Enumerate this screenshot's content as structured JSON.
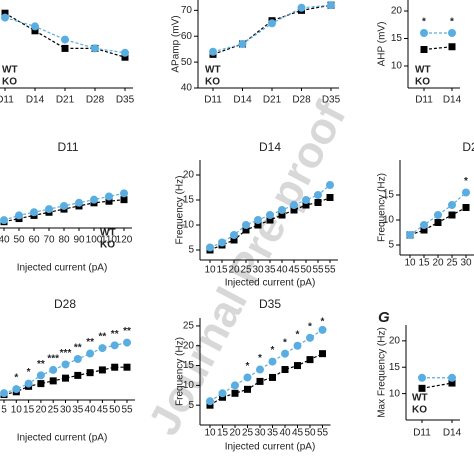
{
  "watermark": "Journal Pre-proof",
  "chart_data": [
    {
      "type": "line",
      "categories": [
        "D11",
        "D14",
        "D21",
        "D28",
        "D35"
      ],
      "ylim": [
        0,
        10
      ],
      "legend": "lower left",
      "series": [
        {
          "name": "WT",
          "color": "#000000",
          "marker": "square",
          "values": [
            8.5,
            6.5,
            4.5,
            4.5,
            3.5
          ]
        },
        {
          "name": "KO",
          "color": "#5aade0",
          "marker": "circle",
          "values": [
            8,
            7,
            5.5,
            4.5,
            4
          ]
        }
      ]
    },
    {
      "type": "line",
      "ylabel": "APamp (mV)",
      "categories": [
        "D11",
        "D14",
        "D21",
        "D28",
        "D35"
      ],
      "ylim": [
        40,
        74
      ],
      "yticks": [
        40,
        50,
        60,
        70
      ],
      "legend": "lower left",
      "series": [
        {
          "name": "WT",
          "color": "#000000",
          "marker": "square",
          "values": [
            53,
            57,
            66,
            70,
            72
          ]
        },
        {
          "name": "KO",
          "color": "#5aade0",
          "marker": "circle",
          "values": [
            54,
            57,
            65,
            71,
            72
          ]
        }
      ]
    },
    {
      "type": "line",
      "ylabel": "AHP (mV)",
      "categories": [
        "D11",
        "D14"
      ],
      "ylim": [
        6,
        22
      ],
      "yticks": [
        10,
        15,
        20
      ],
      "legend": "lower left",
      "markers": [
        "*",
        "*"
      ],
      "series": [
        {
          "name": "WT",
          "color": "#000000",
          "marker": "square",
          "values": [
            13,
            13.5
          ]
        },
        {
          "name": "KO",
          "color": "#5aade0",
          "marker": "circle",
          "values": [
            16,
            16
          ]
        }
      ]
    },
    {
      "type": "line",
      "title": "D11",
      "xlabel": "Injected current (pA)",
      "categories": [
        "40",
        "50",
        "60",
        "70",
        "80",
        "90",
        "100",
        "110",
        "120"
      ],
      "ylim": [
        0,
        20
      ],
      "legend": "lower right",
      "series": [
        {
          "name": "WT",
          "color": "#000000",
          "marker": "square",
          "values": [
            2,
            3,
            4,
            5,
            6,
            7,
            8,
            8.5,
            9
          ]
        },
        {
          "name": "KO",
          "color": "#5aade0",
          "marker": "circle",
          "values": [
            2.5,
            4,
            5,
            6,
            7,
            8,
            9,
            10,
            11
          ]
        }
      ]
    },
    {
      "type": "line",
      "title": "D14",
      "ylabel": "Frequency (Hz)",
      "xlabel": "Injected current (pA)",
      "categories": [
        "10",
        "15",
        "20",
        "25",
        "30",
        "35",
        "40",
        "45",
        "50",
        "55",
        "55"
      ],
      "ylim": [
        3,
        23
      ],
      "yticks": [
        5,
        10,
        15,
        20
      ],
      "series": [
        {
          "name": "WT",
          "color": "#000000",
          "marker": "square",
          "values": [
            5,
            6,
            7,
            9,
            10,
            11,
            12,
            13,
            14,
            14.5,
            15.5
          ]
        },
        {
          "name": "KO",
          "color": "#5aade0",
          "marker": "circle",
          "values": [
            5.5,
            6.5,
            8,
            10,
            11,
            12,
            13,
            14,
            15,
            16,
            18
          ]
        }
      ]
    },
    {
      "type": "line",
      "title": "D2",
      "ylabel": "Frequency (Hz)",
      "categories": [
        "10",
        "15",
        "20",
        "25",
        "30"
      ],
      "ylim": [
        3,
        22
      ],
      "yticks": [
        5,
        10,
        15
      ],
      "markers": [
        null,
        null,
        null,
        null,
        "*"
      ],
      "series": [
        {
          "name": "WT",
          "color": "#000000",
          "marker": "square",
          "values": [
            7,
            8,
            9.5,
            11,
            12.5
          ]
        },
        {
          "name": "KO",
          "color": "#5aade0",
          "marker": "circle",
          "values": [
            7,
            9,
            11,
            13,
            15.5
          ]
        }
      ]
    },
    {
      "type": "line",
      "title": "D28",
      "xlabel": "Injected current (pA)",
      "categories": [
        "5",
        "10",
        "15",
        "20",
        "25",
        "30",
        "35",
        "40",
        "45",
        "50",
        "55"
      ],
      "ylim": [
        0,
        30
      ],
      "markers": [
        null,
        "*",
        "*",
        "**",
        "***",
        "***",
        "**",
        "**",
        "**",
        "**",
        "**"
      ],
      "series": [
        {
          "name": "WT",
          "color": "#000000",
          "marker": "square",
          "values": [
            2,
            3,
            5,
            6,
            7,
            8,
            9,
            10,
            11,
            12,
            12
          ]
        },
        {
          "name": "KO",
          "color": "#5aade0",
          "marker": "circle",
          "values": [
            2.5,
            4,
            6,
            9,
            11,
            13,
            15,
            17,
            19,
            20,
            21
          ]
        }
      ]
    },
    {
      "type": "line",
      "title": "D35",
      "ylabel": "Frequency (Hz)",
      "xlabel": "Injected current (pA)",
      "categories": [
        "10",
        "15",
        "20",
        "25",
        "30",
        "35",
        "40",
        "45",
        "50",
        "55"
      ],
      "ylim": [
        0,
        27
      ],
      "yticks": [
        5,
        10,
        15,
        20,
        25
      ],
      "markers": [
        null,
        null,
        null,
        "*",
        "*",
        "*",
        "*",
        "*",
        "*",
        "*"
      ],
      "series": [
        {
          "name": "WT",
          "color": "#000000",
          "marker": "square",
          "values": [
            5,
            7,
            8,
            9,
            11,
            12,
            14,
            15,
            16.5,
            18
          ]
        },
        {
          "name": "KO",
          "color": "#5aade0",
          "marker": "circle",
          "values": [
            6,
            8,
            10,
            12,
            14,
            16,
            18,
            20,
            22,
            24
          ]
        }
      ]
    },
    {
      "type": "line",
      "panel_label": "G",
      "ylabel": "Max Frequency (Hz)",
      "categories": [
        "D11",
        "D14"
      ],
      "ylim": [
        5,
        23
      ],
      "yticks": [
        10,
        15,
        20
      ],
      "legend": "lower left",
      "series": [
        {
          "name": "WT",
          "color": "#000000",
          "marker": "square",
          "values": [
            11,
            12
          ]
        },
        {
          "name": "KO",
          "color": "#5aade0",
          "marker": "circle",
          "values": [
            13,
            13
          ]
        }
      ]
    }
  ]
}
